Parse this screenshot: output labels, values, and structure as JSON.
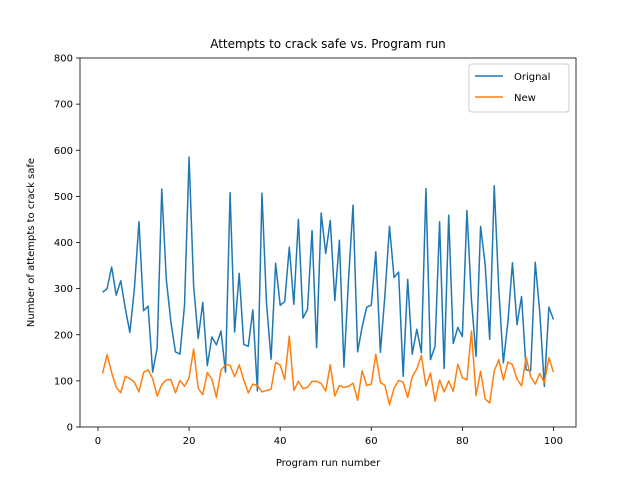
{
  "chart_data": {
    "type": "line",
    "title": "Attempts to crack safe vs. Program run",
    "xlabel": "Program run number",
    "ylabel": "Number of attempts to crack safe",
    "xlim": [
      -3.95,
      104.95
    ],
    "ylim": [
      0,
      800
    ],
    "xticks": [
      0,
      20,
      40,
      60,
      80,
      100
    ],
    "yticks": [
      0,
      100,
      200,
      300,
      400,
      500,
      600,
      700,
      800
    ],
    "grid": false,
    "legend": "top-right",
    "x": [
      1,
      2,
      3,
      4,
      5,
      6,
      7,
      8,
      9,
      10,
      11,
      12,
      13,
      14,
      15,
      16,
      17,
      18,
      19,
      20,
      21,
      22,
      23,
      24,
      25,
      26,
      27,
      28,
      29,
      30,
      31,
      32,
      33,
      34,
      35,
      36,
      37,
      38,
      39,
      40,
      41,
      42,
      43,
      44,
      45,
      46,
      47,
      48,
      49,
      50,
      51,
      52,
      53,
      54,
      55,
      56,
      57,
      58,
      59,
      60,
      61,
      62,
      63,
      64,
      65,
      66,
      67,
      68,
      69,
      70,
      71,
      72,
      73,
      74,
      75,
      76,
      77,
      78,
      79,
      80,
      81,
      82,
      83,
      84,
      85,
      86,
      87,
      88,
      89,
      90,
      91,
      92,
      93,
      94,
      95,
      96,
      97,
      98,
      99,
      100
    ],
    "series": [
      {
        "name": "Orignal",
        "color": "#1f77b4",
        "values": [
          292,
          300,
          347,
          286,
          317,
          257,
          205,
          301,
          445,
          252,
          262,
          119,
          172,
          516,
          320,
          228,
          163,
          158,
          264,
          585,
          305,
          192,
          270,
          133,
          195,
          178,
          208,
          119,
          508,
          206,
          333,
          179,
          175,
          254,
          78,
          507,
          268,
          147,
          355,
          264,
          272,
          390,
          266,
          450,
          236,
          255,
          426,
          172,
          464,
          376,
          448,
          274,
          405,
          130,
          318,
          481,
          163,
          217,
          260,
          264,
          380,
          162,
          286,
          435,
          324,
          336,
          110,
          320,
          158,
          212,
          161,
          517,
          146,
          175,
          445,
          127,
          459,
          181,
          216,
          196,
          469,
          275,
          153,
          435,
          353,
          190,
          523,
          298,
          139,
          228,
          356,
          222,
          283,
          124,
          122,
          357,
          248,
          88,
          260,
          233
        ]
      },
      {
        "name": "New",
        "color": "#ff7f0e",
        "values": [
          116,
          157,
          118,
          86,
          74,
          110,
          105,
          97,
          76,
          118,
          124,
          105,
          67,
          92,
          102,
          103,
          74,
          101,
          88,
          107,
          169,
          84,
          70,
          118,
          104,
          64,
          123,
          135,
          134,
          109,
          135,
          102,
          74,
          93,
          90,
          76,
          79,
          82,
          140,
          134,
          103,
          197,
          79,
          99,
          83,
          86,
          99,
          99,
          94,
          78,
          135,
          67,
          90,
          86,
          88,
          95,
          58,
          122,
          90,
          93,
          158,
          97,
          90,
          48,
          84,
          101,
          97,
          64,
          109,
          126,
          155,
          89,
          117,
          56,
          102,
          76,
          100,
          77,
          136,
          107,
          102,
          208,
          68,
          121,
          61,
          52,
          122,
          146,
          102,
          141,
          135,
          104,
          89,
          151,
          109,
          93,
          116,
          96,
          150,
          119
        ]
      }
    ]
  }
}
